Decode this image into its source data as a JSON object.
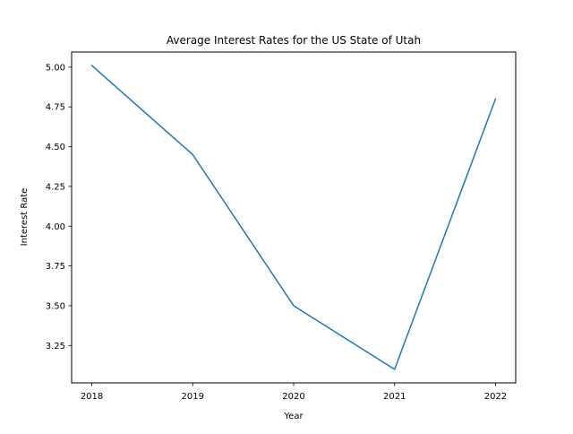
{
  "chart_data": {
    "type": "line",
    "title": "Average Interest Rates for the US State of Utah",
    "xlabel": "Year",
    "ylabel": "Interest Rate",
    "x": [
      2018,
      2019,
      2020,
      2021,
      2022
    ],
    "x_tick_labels": [
      "2018",
      "2019",
      "2020",
      "2021",
      "2022"
    ],
    "series": [
      {
        "values": [
          5.01,
          4.45,
          3.5,
          3.1,
          4.8
        ],
        "color": "#1f77b4"
      }
    ],
    "xlim": [
      2017.8,
      2022.2
    ],
    "ylim": [
      3.015,
      5.095
    ],
    "y_ticks": [
      3.25,
      3.5,
      3.75,
      4.0,
      4.25,
      4.5,
      4.75,
      5.0
    ],
    "y_tick_labels": [
      "3.25",
      "3.50",
      "3.75",
      "4.00",
      "4.25",
      "4.50",
      "4.75",
      "5.00"
    ],
    "grid": false,
    "legend": "none"
  }
}
